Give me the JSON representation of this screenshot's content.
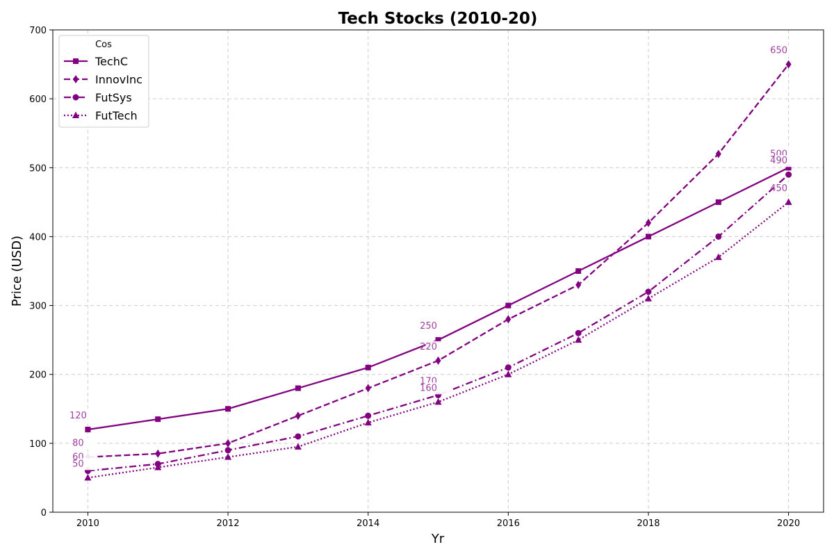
{
  "chart_data": {
    "type": "line",
    "title": "Tech Stocks (2010-20)",
    "xlabel": "Yr",
    "ylabel": "Price (USD)",
    "xlim": [
      2009.5,
      2020.5
    ],
    "ylim": [
      0,
      700
    ],
    "x_ticks": [
      2010,
      2012,
      2014,
      2016,
      2018,
      2020
    ],
    "y_ticks": [
      0,
      100,
      200,
      300,
      400,
      500,
      600,
      700
    ],
    "grid": true,
    "grid_style": "dashed",
    "legend_title": "Cos",
    "legend_position": "upper-left",
    "line_color": "#800080",
    "label_color": "#a040a0",
    "x": [
      2010,
      2011,
      2012,
      2013,
      2014,
      2015,
      2016,
      2017,
      2018,
      2019,
      2020
    ],
    "series": [
      {
        "name": "TechC",
        "marker": "square",
        "dash": "solid",
        "values": [
          120,
          135,
          150,
          180,
          210,
          250,
          300,
          350,
          400,
          450,
          500
        ]
      },
      {
        "name": "InnovInc",
        "marker": "diamond",
        "dash": "dashed",
        "values": [
          80,
          85,
          100,
          140,
          180,
          220,
          280,
          330,
          420,
          520,
          650
        ]
      },
      {
        "name": "FutSys",
        "marker": "circle",
        "dash": "dashdot",
        "values": [
          60,
          70,
          90,
          110,
          140,
          170,
          210,
          260,
          320,
          400,
          490
        ]
      },
      {
        "name": "FutTech",
        "marker": "triangle",
        "dash": "dotted",
        "values": [
          50,
          65,
          80,
          95,
          130,
          160,
          200,
          250,
          310,
          370,
          450
        ]
      }
    ],
    "annotations": [
      {
        "series": "TechC",
        "x": 2010,
        "value": "120"
      },
      {
        "series": "TechC",
        "x": 2015,
        "value": "250"
      },
      {
        "series": "TechC",
        "x": 2020,
        "value": "500"
      },
      {
        "series": "InnovInc",
        "x": 2010,
        "value": "80"
      },
      {
        "series": "InnovInc",
        "x": 2015,
        "value": "220"
      },
      {
        "series": "InnovInc",
        "x": 2020,
        "value": "650"
      },
      {
        "series": "FutSys",
        "x": 2010,
        "value": "60"
      },
      {
        "series": "FutSys",
        "x": 2015,
        "value": "170"
      },
      {
        "series": "FutSys",
        "x": 2020,
        "value": "490"
      },
      {
        "series": "FutTech",
        "x": 2010,
        "value": "50"
      },
      {
        "series": "FutTech",
        "x": 2015,
        "value": "160"
      },
      {
        "series": "FutTech",
        "x": 2020,
        "value": "450"
      }
    ]
  }
}
